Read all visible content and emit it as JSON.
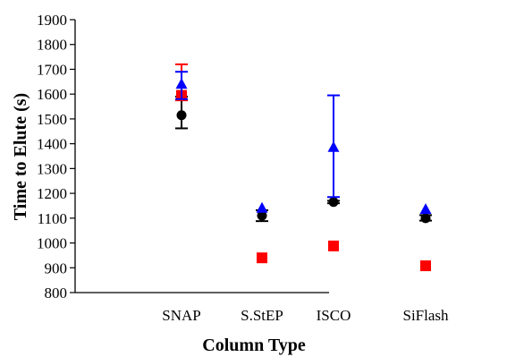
{
  "chart_data": {
    "type": "scatter",
    "title": "",
    "xlabel": "Column Type",
    "ylabel": "Time to Elute (s)",
    "categories": [
      "SNAP",
      "S.StEP",
      "ISCO",
      "SiFlash"
    ],
    "ylim": [
      800,
      1900
    ],
    "yticks": [
      800,
      900,
      1000,
      1100,
      1200,
      1300,
      1400,
      1500,
      1600,
      1700,
      1800,
      1900
    ],
    "grid": false,
    "legend": "none",
    "series": [
      {
        "color": "#000000",
        "marker": "circle",
        "values": [
          1515,
          1110,
          1165,
          1100
        ],
        "error_low": [
          1462,
          1088,
          1160,
          1090
        ],
        "error_high": [
          1590,
          1132,
          1170,
          1112
        ]
      },
      {
        "color": "#ff0000",
        "marker": "square",
        "values": [
          1595,
          940,
          988,
          908
        ],
        "error_low": [
          1575,
          940,
          988,
          908
        ],
        "error_high": [
          1720,
          940,
          988,
          908
        ]
      },
      {
        "color": "#0000ff",
        "marker": "triangle",
        "values": [
          1640,
          1140,
          1385,
          1135
        ],
        "error_low": [
          1580,
          1140,
          1185,
          1135
        ],
        "error_high": [
          1690,
          1140,
          1595,
          1135
        ]
      }
    ]
  }
}
